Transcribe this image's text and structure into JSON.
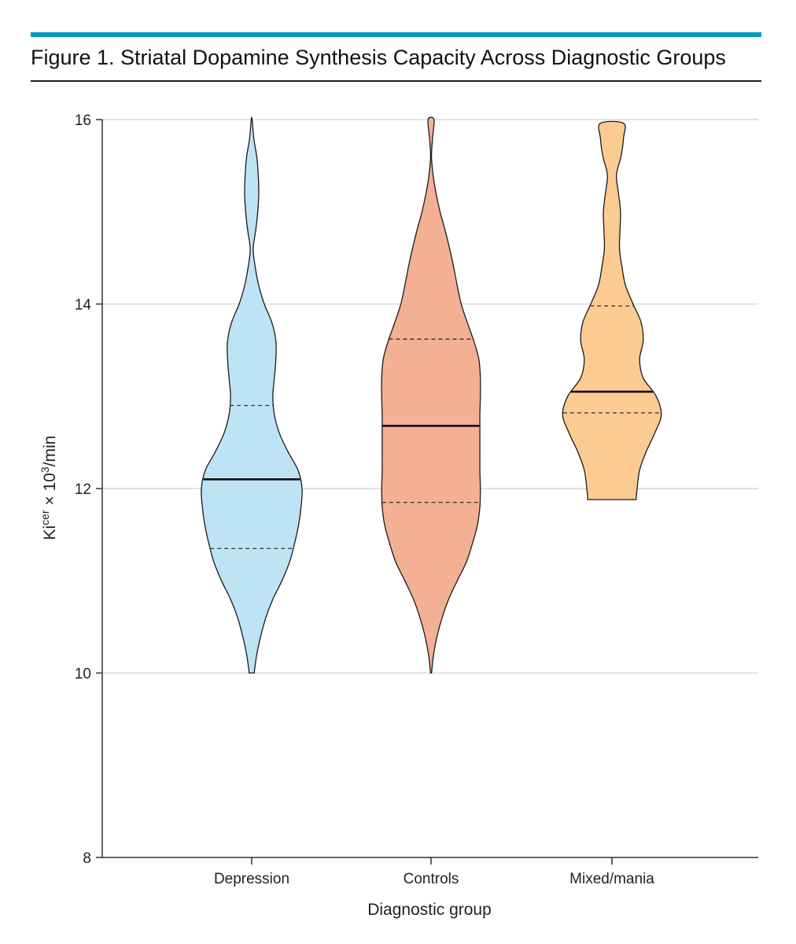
{
  "figure": {
    "title": "Figure 1. Striatal Dopamine Synthesis Capacity Across Diagnostic Groups",
    "accent_color": "#0098c3"
  },
  "chart_data": {
    "type": "violin",
    "xlabel": "Diagnostic group",
    "ylabel": {
      "base": "Ki",
      "sup1": "cer",
      "mid": " × 10",
      "sup2": "3",
      "tail": "/min"
    },
    "ylim": [
      8,
      16
    ],
    "yticks": [
      8,
      10,
      12,
      14,
      16
    ],
    "yticks_labels": [
      "8",
      "10",
      "12",
      "14",
      "16"
    ],
    "grid": true,
    "categories": [
      "Depression",
      "Controls",
      "Mixed/mania"
    ],
    "series": [
      {
        "category": "Depression",
        "fill": "#bde3f5",
        "median": 12.1,
        "q1": 11.35,
        "q3": 12.9,
        "density": [
          [
            10,
            0.05
          ],
          [
            10.2,
            0.1
          ],
          [
            10.4,
            0.18
          ],
          [
            10.6,
            0.28
          ],
          [
            10.8,
            0.42
          ],
          [
            11,
            0.6
          ],
          [
            11.2,
            0.75
          ],
          [
            11.4,
            0.85
          ],
          [
            11.6,
            0.93
          ],
          [
            11.8,
            0.98
          ],
          [
            12,
            1.0
          ],
          [
            12.2,
            0.92
          ],
          [
            12.4,
            0.72
          ],
          [
            12.6,
            0.55
          ],
          [
            12.8,
            0.45
          ],
          [
            13,
            0.42
          ],
          [
            13.2,
            0.45
          ],
          [
            13.4,
            0.48
          ],
          [
            13.6,
            0.48
          ],
          [
            13.8,
            0.4
          ],
          [
            14,
            0.25
          ],
          [
            14.2,
            0.14
          ],
          [
            14.4,
            0.07
          ],
          [
            14.6,
            0.03
          ],
          [
            14.8,
            0.08
          ],
          [
            15,
            0.12
          ],
          [
            15.2,
            0.14
          ],
          [
            15.4,
            0.13
          ],
          [
            15.6,
            0.1
          ],
          [
            15.8,
            0.04
          ],
          [
            16,
            0.01
          ]
        ]
      },
      {
        "category": "Controls",
        "fill": "#f4b094",
        "median": 12.68,
        "q1": 11.85,
        "q3": 13.62,
        "density": [
          [
            10,
            0.01
          ],
          [
            10.2,
            0.05
          ],
          [
            10.4,
            0.12
          ],
          [
            10.6,
            0.22
          ],
          [
            10.8,
            0.35
          ],
          [
            11,
            0.52
          ],
          [
            11.2,
            0.7
          ],
          [
            11.4,
            0.82
          ],
          [
            11.6,
            0.92
          ],
          [
            11.8,
            0.97
          ],
          [
            12,
            0.98
          ],
          [
            12.2,
            0.97
          ],
          [
            12.4,
            0.97
          ],
          [
            12.6,
            0.97
          ],
          [
            12.8,
            0.97
          ],
          [
            13,
            0.98
          ],
          [
            13.2,
            0.98
          ],
          [
            13.4,
            0.95
          ],
          [
            13.6,
            0.85
          ],
          [
            13.8,
            0.72
          ],
          [
            14,
            0.6
          ],
          [
            14.2,
            0.52
          ],
          [
            14.4,
            0.45
          ],
          [
            14.6,
            0.37
          ],
          [
            14.8,
            0.28
          ],
          [
            15,
            0.18
          ],
          [
            15.2,
            0.1
          ],
          [
            15.4,
            0.04
          ],
          [
            15.6,
            0.01
          ],
          [
            15.8,
            0.03
          ],
          [
            16,
            0.06
          ]
        ]
      },
      {
        "category": "Mixed/mania",
        "fill": "#fccb92",
        "median": 13.05,
        "q1": 12.82,
        "q3": 13.98,
        "density": [
          [
            11.88,
            0.48
          ],
          [
            12,
            0.5
          ],
          [
            12.2,
            0.55
          ],
          [
            12.4,
            0.68
          ],
          [
            12.6,
            0.85
          ],
          [
            12.8,
            0.98
          ],
          [
            13,
            0.88
          ],
          [
            13.2,
            0.62
          ],
          [
            13.4,
            0.55
          ],
          [
            13.6,
            0.62
          ],
          [
            13.8,
            0.58
          ],
          [
            14,
            0.42
          ],
          [
            14.2,
            0.27
          ],
          [
            14.4,
            0.2
          ],
          [
            14.6,
            0.15
          ],
          [
            14.8,
            0.16
          ],
          [
            15,
            0.17
          ],
          [
            15.2,
            0.13
          ],
          [
            15.4,
            0.09
          ],
          [
            15.6,
            0.18
          ],
          [
            15.8,
            0.23
          ],
          [
            15.96,
            0.23
          ]
        ]
      }
    ]
  }
}
